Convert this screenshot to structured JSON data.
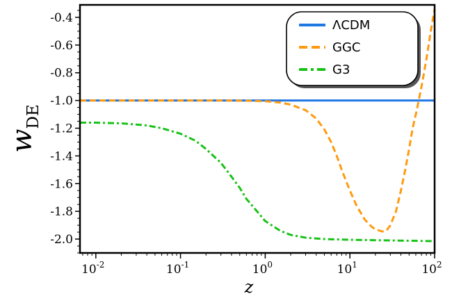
{
  "chart_data": {
    "type": "line",
    "xlabel": "z",
    "ylabel": "w",
    "ylabel_subscript": "DE",
    "xscale": "log",
    "xlim": [
      0.0065,
      100
    ],
    "ylim": [
      -2.1,
      -0.31
    ],
    "x_ticks": [
      {
        "value": 0.01,
        "base": "10",
        "exp": "-2"
      },
      {
        "value": 0.1,
        "base": "10",
        "exp": "-1"
      },
      {
        "value": 1,
        "base": "10",
        "exp": "0"
      },
      {
        "value": 10,
        "base": "10",
        "exp": "1"
      },
      {
        "value": 100,
        "base": "10",
        "exp": "2"
      }
    ],
    "y_ticks": [
      {
        "value": -0.4,
        "label": "-0.4"
      },
      {
        "value": -0.6,
        "label": "-0.6"
      },
      {
        "value": -0.8,
        "label": "-0.8"
      },
      {
        "value": -1.0,
        "label": "-1.0"
      },
      {
        "value": -1.2,
        "label": "-1.2"
      },
      {
        "value": -1.4,
        "label": "-1.4"
      },
      {
        "value": -1.6,
        "label": "-1.6"
      },
      {
        "value": -1.8,
        "label": "-1.8"
      },
      {
        "value": -2.0,
        "label": "-2.0"
      }
    ],
    "grid": false,
    "legend_position": "top-right",
    "series": [
      {
        "name": "ΛCDM",
        "color": "#1f77e4",
        "style": "solid",
        "points": [
          [
            0.0065,
            -1.0
          ],
          [
            100,
            -1.0
          ]
        ]
      },
      {
        "name": "GGC",
        "color": "#ff9a10",
        "style": "dashed",
        "points": [
          [
            0.0065,
            -1.0
          ],
          [
            0.1,
            -1.0
          ],
          [
            0.3,
            -1.0
          ],
          [
            0.6,
            -1.002
          ],
          [
            1,
            -1.005
          ],
          [
            1.5,
            -1.015
          ],
          [
            2,
            -1.03
          ],
          [
            3,
            -1.07
          ],
          [
            4,
            -1.13
          ],
          [
            5,
            -1.21
          ],
          [
            6,
            -1.3
          ],
          [
            7,
            -1.4
          ],
          [
            8,
            -1.5
          ],
          [
            9,
            -1.58
          ],
          [
            10,
            -1.65
          ],
          [
            12,
            -1.76
          ],
          [
            15,
            -1.86
          ],
          [
            18,
            -1.91
          ],
          [
            20,
            -1.93
          ],
          [
            24,
            -1.945
          ],
          [
            27,
            -1.94
          ],
          [
            30,
            -1.9
          ],
          [
            35,
            -1.8
          ],
          [
            40,
            -1.65
          ],
          [
            45,
            -1.5
          ],
          [
            50,
            -1.35
          ],
          [
            55,
            -1.2
          ],
          [
            60,
            -1.1
          ],
          [
            65,
            -1.0
          ],
          [
            70,
            -0.9
          ],
          [
            75,
            -0.8
          ],
          [
            80,
            -0.7
          ],
          [
            85,
            -0.6
          ],
          [
            90,
            -0.5
          ],
          [
            95,
            -0.42
          ],
          [
            100,
            -0.34
          ]
        ]
      },
      {
        "name": "G3",
        "color": "#17c217",
        "style": "dashdot",
        "points": [
          [
            0.0065,
            -1.16
          ],
          [
            0.01,
            -1.16
          ],
          [
            0.02,
            -1.165
          ],
          [
            0.04,
            -1.18
          ],
          [
            0.06,
            -1.2
          ],
          [
            0.1,
            -1.24
          ],
          [
            0.15,
            -1.29
          ],
          [
            0.2,
            -1.35
          ],
          [
            0.3,
            -1.45
          ],
          [
            0.4,
            -1.55
          ],
          [
            0.5,
            -1.63
          ],
          [
            0.6,
            -1.71
          ],
          [
            0.8,
            -1.8
          ],
          [
            1,
            -1.87
          ],
          [
            1.5,
            -1.94
          ],
          [
            2,
            -1.97
          ],
          [
            3,
            -1.99
          ],
          [
            5,
            -2.0
          ],
          [
            10,
            -2.005
          ],
          [
            30,
            -2.01
          ],
          [
            100,
            -2.015
          ]
        ]
      }
    ]
  }
}
